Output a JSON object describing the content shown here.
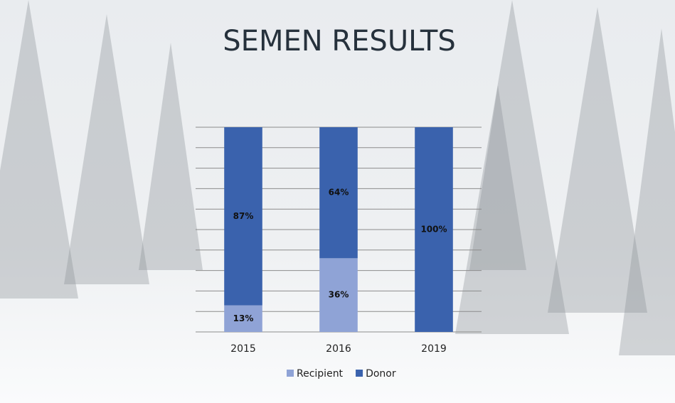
{
  "chart_data": {
    "type": "stacked_bar",
    "title": "SEMEN RESULTS",
    "categories": [
      "2015",
      "2016",
      "2019"
    ],
    "series": [
      {
        "name": "Recipient",
        "color": "#8fa3d6",
        "values": [
          13,
          36,
          0
        ],
        "value_labels": [
          "13%",
          "36%",
          null
        ]
      },
      {
        "name": "Donor",
        "color": "#3a62ad",
        "values": [
          87,
          64,
          100
        ],
        "value_labels": [
          "87%",
          "64%",
          "100%"
        ]
      }
    ],
    "ylim": [
      0,
      100
    ],
    "yticks": [
      0,
      10,
      20,
      30,
      40,
      50,
      60,
      70,
      80,
      90,
      100
    ],
    "grid": true,
    "legend": "bottom"
  }
}
